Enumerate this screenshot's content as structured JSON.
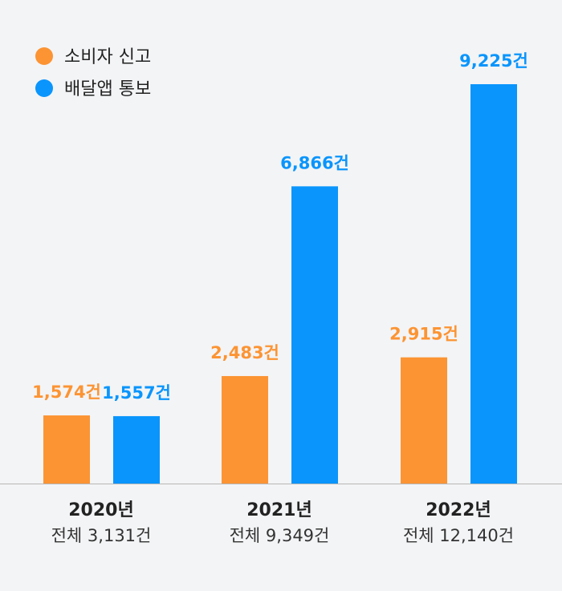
{
  "chart_data": {
    "type": "bar",
    "categories": [
      "2020년",
      "2021년",
      "2022년"
    ],
    "totals": [
      "전체 3,131건",
      "전체 9,349건",
      "전체 12,140건"
    ],
    "series": [
      {
        "name": "소비자 신고",
        "color": "#fc9433",
        "values": [
          1574,
          2483,
          2915
        ],
        "labels": [
          "1,574건",
          "2,483건",
          "2,915건"
        ]
      },
      {
        "name": "배달앱 통보",
        "color": "#0a95fc",
        "values": [
          1557,
          6866,
          9225
        ],
        "labels": [
          "1,557건",
          "6,866건",
          "9,225건"
        ]
      }
    ],
    "title": "",
    "xlabel": "",
    "ylabel": "",
    "ylim": [
      0,
      9225
    ],
    "grid": false,
    "legend": "top-left",
    "axis_color": "#b7b7b7",
    "label_color": "#222222",
    "total_color": "#333333"
  }
}
